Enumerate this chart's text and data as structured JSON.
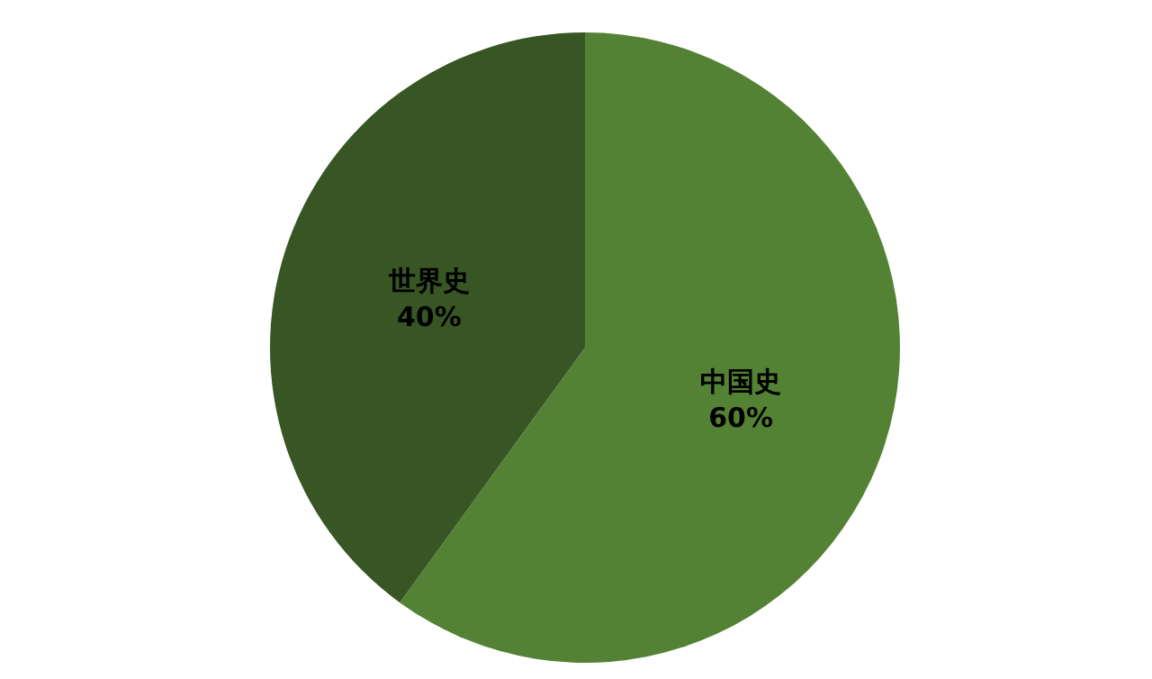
{
  "chart_data": {
    "type": "pie",
    "categories": [
      "中国史",
      "世界史"
    ],
    "values": [
      60,
      40
    ],
    "colors": [
      "#548235",
      "#375623"
    ],
    "value_labels": [
      "60%",
      "40%"
    ],
    "legend": false
  }
}
